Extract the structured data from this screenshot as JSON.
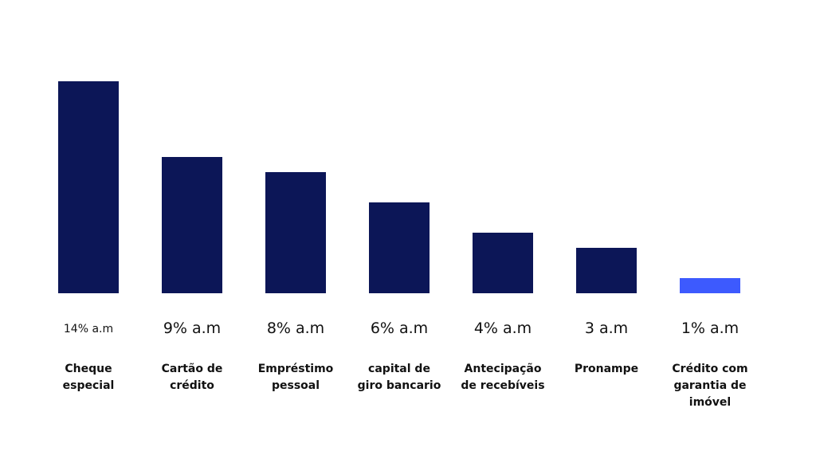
{
  "chart_data": {
    "type": "bar",
    "categories": [
      "Cheque especial",
      "Cartão de crédito",
      "Empréstimo pessoal",
      "capital de giro bancario",
      "Antecipação de recebíveis",
      "Pronampe",
      "Crédito com garantia de imóvel"
    ],
    "values": [
      14,
      9,
      8,
      6,
      4,
      3,
      1
    ],
    "value_labels": [
      "14% a.m",
      "9% a.m",
      "8% a.m",
      "6% a.m",
      "4% a.m",
      "3 a.m",
      "1% a.m"
    ],
    "colors": [
      "#0c1657",
      "#0c1657",
      "#0c1657",
      "#0c1657",
      "#0c1657",
      "#0c1657",
      "#3d5afe"
    ]
  }
}
